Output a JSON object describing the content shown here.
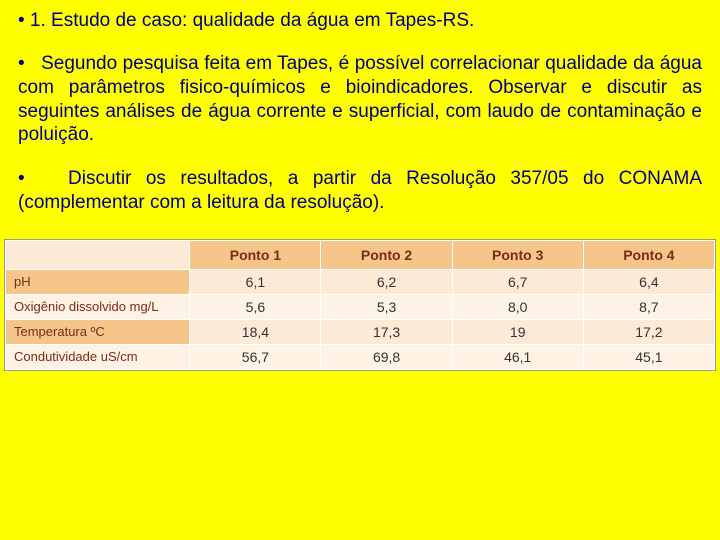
{
  "text": {
    "title": "• 1. Estudo de caso: qualidade da água em Tapes-RS.",
    "para1": "•   Segundo pesquisa feita em Tapes, é possível correlacionar qualidade da água com parâmetros fisico-químicos e bioindicadores. Observar e discutir as seguintes análises de água corrente e superficial, com laudo de contaminação e poluição.",
    "para2": "•   Discutir os resultados, a partir da Resolução 357/05 do CONAMA (complementar com a leitura da resolução)."
  },
  "table": {
    "columns": [
      "",
      "Ponto 1",
      "Ponto 2",
      "Ponto 3",
      "Ponto 4"
    ],
    "rows": [
      {
        "label": "pH",
        "values": [
          "6,1",
          "6,2",
          "6,7",
          "6,4"
        ]
      },
      {
        "label": "Oxigênio dissolvido mg/L",
        "values": [
          "5,6",
          "5,3",
          "8,0",
          "8,7"
        ]
      },
      {
        "label": "Temperatura ºC",
        "values": [
          "18,4",
          "17,3",
          "19",
          "17,2"
        ]
      },
      {
        "label": "Condutividade uS/cm",
        "values": [
          "56,7",
          "69,8",
          "46,1",
          "45,1"
        ]
      }
    ],
    "col_widths_pct": [
      26,
      18.5,
      18.5,
      18.5,
      18.5
    ],
    "header_bg": "#f5c58a",
    "corner_bg": "#fce9d6",
    "cell_bg": "#fce9d6",
    "cell_bg_alt": "#fdf2e4",
    "text_color": "#7a2b1a",
    "border_color": "#ffffff",
    "font_size": 14
  },
  "colors": {
    "page_bg": "#ffff00",
    "text": "#000080"
  }
}
